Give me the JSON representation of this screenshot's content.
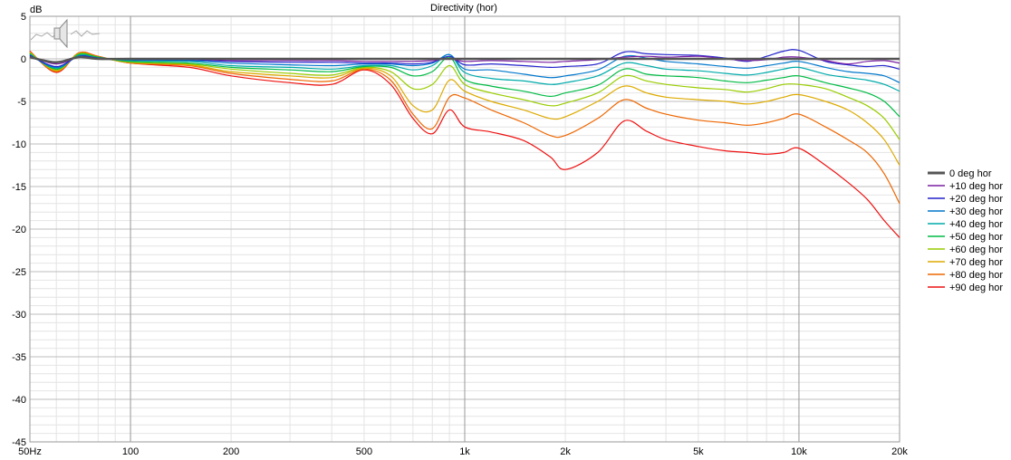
{
  "chart_data": {
    "type": "line",
    "title": "Directivity (hor)",
    "ylabel": "dB",
    "xscale": "log",
    "xlim": [
      50,
      20000
    ],
    "ylim": [
      -45,
      5
    ],
    "grid": true,
    "legend_position": "right",
    "x_tick_labels": [
      {
        "value": 50,
        "label": "50Hz"
      },
      {
        "value": 100,
        "label": "100"
      },
      {
        "value": 200,
        "label": "200"
      },
      {
        "value": 500,
        "label": "500"
      },
      {
        "value": 1000,
        "label": "1k"
      },
      {
        "value": 2000,
        "label": "2k"
      },
      {
        "value": 5000,
        "label": "5k"
      },
      {
        "value": 10000,
        "label": "10k"
      },
      {
        "value": 20000,
        "label": "20k"
      }
    ],
    "y_tick_labels": [
      {
        "value": 5,
        "label": "5"
      },
      {
        "value": 0,
        "label": "0"
      },
      {
        "value": -5,
        "label": "-5"
      },
      {
        "value": -10,
        "label": "-10"
      },
      {
        "value": -15,
        "label": "-15"
      },
      {
        "value": -20,
        "label": "-20"
      },
      {
        "value": -25,
        "label": "-25"
      },
      {
        "value": -30,
        "label": "-30"
      },
      {
        "value": -35,
        "label": "-35"
      },
      {
        "value": -40,
        "label": "-40"
      },
      {
        "value": -45,
        "label": "-45"
      }
    ],
    "x": [
      50,
      60,
      70,
      80,
      100,
      150,
      200,
      300,
      400,
      500,
      600,
      700,
      800,
      900,
      1000,
      1200,
      1500,
      1800,
      2000,
      2500,
      3000,
      3500,
      4000,
      5000,
      6000,
      7000,
      8000,
      9000,
      10000,
      12000,
      14000,
      16000,
      18000,
      20000
    ],
    "series": [
      {
        "name": "0 deg hor",
        "color": "#555555",
        "values": [
          0.2,
          -0.4,
          0.2,
          0,
          0,
          0,
          0,
          0,
          0,
          0,
          0,
          0,
          0,
          0,
          0,
          0,
          0,
          0,
          0,
          0,
          0,
          0,
          0,
          0,
          0,
          0,
          0,
          0,
          0,
          0,
          0,
          0,
          0,
          0
        ]
      },
      {
        "name": "+10 deg hor",
        "color": "#7a1fa2",
        "values": [
          0.3,
          -0.6,
          0.2,
          0,
          0,
          0,
          -0.2,
          -0.2,
          -0.2,
          -0.3,
          -0.3,
          -0.3,
          -0.2,
          0,
          -0.3,
          -0.2,
          -0.3,
          -0.4,
          -0.3,
          -0.1,
          0.2,
          0.3,
          0.2,
          0.3,
          0,
          -0.2,
          -0.1,
          0.2,
          0.2,
          -0.2,
          -0.6,
          -0.3,
          -0.2,
          -0.5
        ]
      },
      {
        "name": "+20 deg hor",
        "color": "#2222cc",
        "values": [
          0.4,
          -0.9,
          0.3,
          0.1,
          -0.1,
          -0.1,
          -0.3,
          -0.4,
          -0.4,
          -0.5,
          -0.5,
          -0.6,
          -0.4,
          0.3,
          -0.7,
          -0.6,
          -0.8,
          -1.0,
          -0.9,
          -0.6,
          0.8,
          0.6,
          0.5,
          0.4,
          0.1,
          -0.3,
          0.3,
          0.9,
          1.0,
          -0.3,
          -0.7,
          -0.9,
          -0.8,
          -1.2
        ]
      },
      {
        "name": "+30 deg hor",
        "color": "#0077cc",
        "values": [
          0.4,
          -1.0,
          0.3,
          0.1,
          -0.1,
          -0.2,
          -0.5,
          -0.7,
          -0.8,
          -0.6,
          -0.6,
          -0.8,
          -0.5,
          0.5,
          -1.2,
          -1.3,
          -1.8,
          -2.2,
          -2.0,
          -1.3,
          0.3,
          0.1,
          -0.3,
          -0.6,
          -0.9,
          -1.1,
          -0.8,
          -0.5,
          -0.3,
          -1.0,
          -1.5,
          -1.7,
          -2.0,
          -2.8
        ]
      },
      {
        "name": "+40 deg hor",
        "color": "#00aaaa",
        "values": [
          0.5,
          -1.1,
          0.4,
          0.1,
          -0.2,
          -0.3,
          -0.8,
          -1.0,
          -1.2,
          -0.8,
          -0.8,
          -1.3,
          -0.8,
          0.5,
          -1.6,
          -2.3,
          -2.6,
          -3.0,
          -2.8,
          -2.0,
          -0.5,
          -0.8,
          -1.2,
          -1.4,
          -1.7,
          -1.9,
          -1.6,
          -1.2,
          -1.0,
          -1.8,
          -2.2,
          -2.5,
          -3.0,
          -3.8
        ]
      },
      {
        "name": "+50 deg hor",
        "color": "#00bb44",
        "values": [
          0.6,
          -1.2,
          0.5,
          0.2,
          -0.3,
          -0.5,
          -1.0,
          -1.3,
          -1.5,
          -0.9,
          -1.0,
          -2.0,
          -1.5,
          0.2,
          -2.4,
          -3.2,
          -3.8,
          -4.4,
          -4.0,
          -3.1,
          -1.2,
          -1.8,
          -2.0,
          -2.2,
          -2.6,
          -2.8,
          -2.5,
          -2.2,
          -2.0,
          -2.8,
          -3.4,
          -4.0,
          -5.0,
          -6.8
        ]
      },
      {
        "name": "+60 deg hor",
        "color": "#99cc00",
        "values": [
          0.7,
          -1.3,
          0.6,
          0.2,
          -0.4,
          -0.6,
          -1.2,
          -1.7,
          -1.9,
          -1.0,
          -1.5,
          -3.5,
          -3.0,
          -0.8,
          -3.0,
          -4.0,
          -4.8,
          -5.5,
          -5.2,
          -4.0,
          -2.0,
          -2.6,
          -3.0,
          -3.4,
          -3.6,
          -3.9,
          -3.5,
          -3.0,
          -3.0,
          -3.5,
          -4.5,
          -5.5,
          -7.0,
          -9.5
        ]
      },
      {
        "name": "+70 deg hor",
        "color": "#ddaa00",
        "values": [
          0.8,
          -1.4,
          0.6,
          0.2,
          -0.4,
          -0.7,
          -1.5,
          -2.0,
          -2.2,
          -1.1,
          -2.0,
          -5.5,
          -6.0,
          -2.5,
          -3.8,
          -5.0,
          -6.0,
          -7.0,
          -6.8,
          -5.0,
          -3.2,
          -4.0,
          -4.5,
          -4.8,
          -5.0,
          -5.3,
          -5.0,
          -4.5,
          -4.2,
          -5.0,
          -6.0,
          -7.5,
          -9.5,
          -12.5
        ]
      },
      {
        "name": "+80 deg hor",
        "color": "#ee6600",
        "values": [
          0.8,
          -1.5,
          0.7,
          0.3,
          -0.5,
          -0.8,
          -1.7,
          -2.4,
          -2.6,
          -1.2,
          -2.5,
          -6.5,
          -8.2,
          -4.5,
          -4.6,
          -6.0,
          -7.5,
          -9.0,
          -9.0,
          -7.0,
          -4.8,
          -5.8,
          -6.5,
          -7.2,
          -7.5,
          -7.8,
          -7.5,
          -7.0,
          -6.5,
          -8.0,
          -9.5,
          -11.0,
          -13.5,
          -17.0
        ]
      },
      {
        "name": "+90 deg hor",
        "color": "#ee1111",
        "values": [
          0.9,
          -1.6,
          0.7,
          0.3,
          -0.5,
          -1.0,
          -2.0,
          -2.8,
          -3.0,
          -1.3,
          -3.0,
          -7.0,
          -8.8,
          -6.0,
          -8.0,
          -8.6,
          -9.6,
          -11.5,
          -13.0,
          -11.0,
          -7.3,
          -8.5,
          -9.5,
          -10.3,
          -10.8,
          -11.0,
          -11.2,
          -11.0,
          -10.5,
          -12.5,
          -14.5,
          -16.5,
          -19.0,
          -21.0
        ]
      }
    ]
  }
}
